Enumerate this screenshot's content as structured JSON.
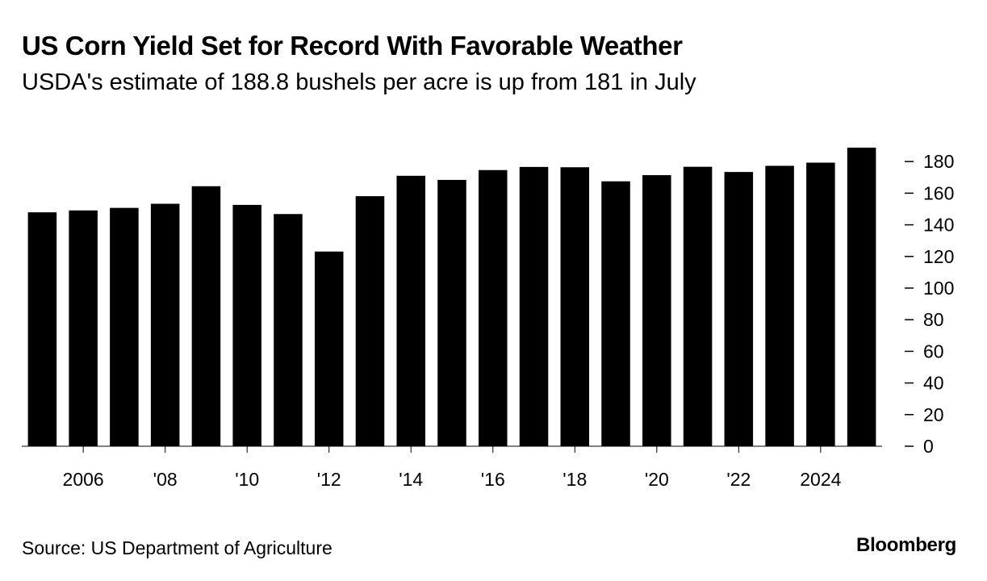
{
  "chart_data": {
    "type": "bar",
    "title": "US Corn Yield Set for Record With Favorable Weather",
    "subtitle": "USDA's estimate of 188.8 bushels per acre is up from 181 in July",
    "categories": [
      "2005",
      "2006",
      "2007",
      "2008",
      "2009",
      "2010",
      "2011",
      "2012",
      "2013",
      "2014",
      "2015",
      "2016",
      "2017",
      "2018",
      "2019",
      "2020",
      "2021",
      "2022",
      "2023",
      "2024",
      "2025"
    ],
    "values": [
      147.9,
      149.1,
      150.7,
      153.3,
      164.4,
      152.6,
      146.8,
      123.1,
      158.1,
      171.0,
      168.4,
      174.6,
      176.6,
      176.4,
      167.5,
      171.4,
      176.7,
      173.4,
      177.3,
      179.3,
      188.8
    ],
    "x_tick_labels": [
      {
        "category": "2006",
        "label": "2006"
      },
      {
        "category": "2008",
        "label": "'08"
      },
      {
        "category": "2010",
        "label": "'10"
      },
      {
        "category": "2012",
        "label": "'12"
      },
      {
        "category": "2014",
        "label": "'14"
      },
      {
        "category": "2016",
        "label": "'16"
      },
      {
        "category": "2018",
        "label": "'18"
      },
      {
        "category": "2020",
        "label": "'20"
      },
      {
        "category": "2022",
        "label": "'22"
      },
      {
        "category": "2024",
        "label": "2024"
      }
    ],
    "y_ticks": [
      0,
      20,
      40,
      60,
      80,
      100,
      120,
      140,
      160,
      180
    ],
    "ylim": [
      0,
      190
    ],
    "y_axis_side": "right",
    "xlabel": "",
    "ylabel": "",
    "grid": false,
    "bar_color": "#000000"
  },
  "footer": {
    "source": "Source: US Department of Agriculture",
    "brand": "Bloomberg"
  }
}
